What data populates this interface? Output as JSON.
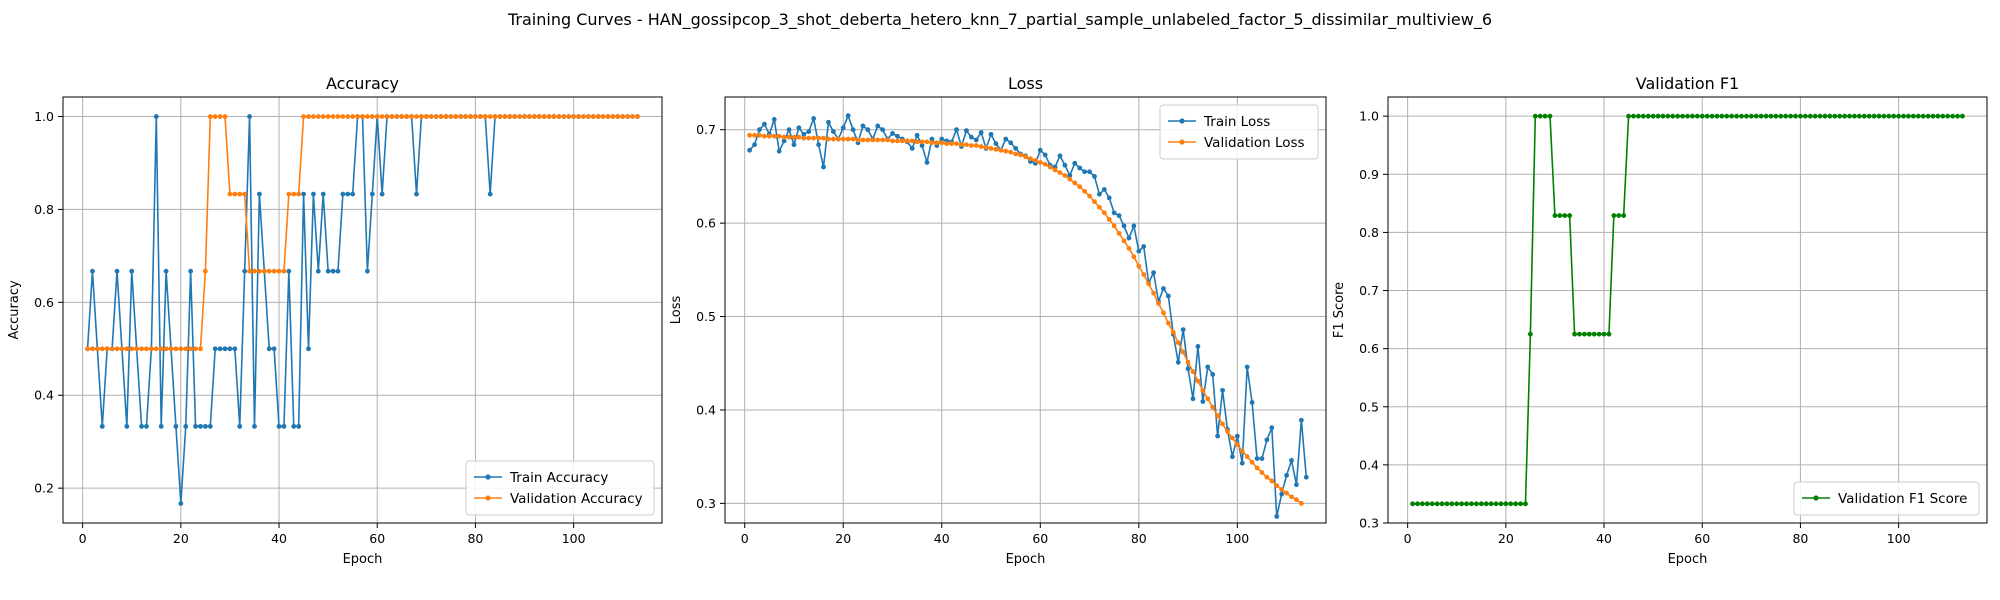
{
  "suptitle": "Training Curves - HAN_gossipcop_3_shot_deberta_hetero_knn_7_partial_sample_unlabeled_factor_5_dissimilar_multiview_6",
  "colors": {
    "train": "#1f77b4",
    "val": "#ff7f0e",
    "f1": "#008000",
    "grid": "#b0b0b0"
  },
  "chart_data": [
    {
      "type": "line",
      "title": "Accuracy",
      "xlabel": "Epoch",
      "ylabel": "Accuracy",
      "xlim": [
        -4,
        118
      ],
      "ylim": [
        0.125,
        1.042
      ],
      "xticks": [
        0,
        20,
        40,
        60,
        80,
        100
      ],
      "yticks": [
        0.2,
        0.4,
        0.6,
        0.8,
        1.0
      ],
      "ytick_labels": [
        "0.2",
        "0.4",
        "0.6",
        "0.8",
        "1.0"
      ],
      "grid": true,
      "legend_position": "lower-right",
      "x_start": 1,
      "series": [
        {
          "name": "Train Accuracy",
          "color": "#1f77b4",
          "values": [
            0.5,
            0.667,
            0.5,
            0.333,
            0.5,
            0.5,
            0.667,
            0.5,
            0.333,
            0.667,
            0.5,
            0.333,
            0.333,
            0.5,
            1.0,
            0.333,
            0.667,
            0.5,
            0.333,
            0.167,
            0.333,
            0.667,
            0.333,
            0.333,
            0.333,
            0.333,
            0.5,
            0.5,
            0.5,
            0.5,
            0.5,
            0.333,
            0.667,
            1.0,
            0.333,
            0.833,
            0.667,
            0.5,
            0.5,
            0.333,
            0.333,
            0.667,
            0.333,
            0.333,
            0.833,
            0.5,
            0.833,
            0.667,
            0.833,
            0.667,
            0.667,
            0.667,
            0.833,
            0.833,
            0.833,
            1.0,
            1.0,
            0.667,
            0.833,
            1.0,
            0.833,
            1.0,
            1.0,
            1.0,
            1.0,
            1.0,
            1.0,
            0.833,
            1.0,
            1.0,
            1.0,
            1.0,
            1.0,
            1.0,
            1.0,
            1.0,
            1.0,
            1.0,
            1.0,
            1.0,
            1.0,
            1.0,
            0.833,
            1.0,
            1.0,
            1.0,
            1.0,
            1.0,
            1.0,
            1.0,
            1.0,
            1.0,
            1.0,
            1.0,
            1.0,
            1.0,
            1.0,
            1.0,
            1.0,
            1.0,
            1.0,
            1.0,
            1.0,
            1.0,
            1.0,
            1.0,
            1.0,
            1.0,
            1.0,
            1.0,
            1.0,
            1.0,
            1.0
          ]
        },
        {
          "name": "Validation Accuracy",
          "color": "#ff7f0e",
          "values": [
            0.5,
            0.5,
            0.5,
            0.5,
            0.5,
            0.5,
            0.5,
            0.5,
            0.5,
            0.5,
            0.5,
            0.5,
            0.5,
            0.5,
            0.5,
            0.5,
            0.5,
            0.5,
            0.5,
            0.5,
            0.5,
            0.5,
            0.5,
            0.5,
            0.667,
            1.0,
            1.0,
            1.0,
            1.0,
            0.833,
            0.833,
            0.833,
            0.833,
            0.667,
            0.667,
            0.667,
            0.667,
            0.667,
            0.667,
            0.667,
            0.667,
            0.833,
            0.833,
            0.833,
            1.0,
            1.0,
            1.0,
            1.0,
            1.0,
            1.0,
            1.0,
            1.0,
            1.0,
            1.0,
            1.0,
            1.0,
            1.0,
            1.0,
            1.0,
            1.0,
            1.0,
            1.0,
            1.0,
            1.0,
            1.0,
            1.0,
            1.0,
            1.0,
            1.0,
            1.0,
            1.0,
            1.0,
            1.0,
            1.0,
            1.0,
            1.0,
            1.0,
            1.0,
            1.0,
            1.0,
            1.0,
            1.0,
            1.0,
            1.0,
            1.0,
            1.0,
            1.0,
            1.0,
            1.0,
            1.0,
            1.0,
            1.0,
            1.0,
            1.0,
            1.0,
            1.0,
            1.0,
            1.0,
            1.0,
            1.0,
            1.0,
            1.0,
            1.0,
            1.0,
            1.0,
            1.0,
            1.0,
            1.0,
            1.0,
            1.0,
            1.0,
            1.0,
            1.0
          ]
        }
      ]
    },
    {
      "type": "line",
      "title": "Loss",
      "xlabel": "Epoch",
      "ylabel": "Loss",
      "xlim": [
        -4,
        118
      ],
      "ylim": [
        0.279,
        0.735
      ],
      "xticks": [
        0,
        20,
        40,
        60,
        80,
        100
      ],
      "yticks": [
        0.3,
        0.4,
        0.5,
        0.6,
        0.7
      ],
      "ytick_labels": [
        "0.3",
        "0.4",
        "0.5",
        "0.6",
        "0.7"
      ],
      "grid": true,
      "legend_position": "upper-right",
      "x_start": 1,
      "series": [
        {
          "name": "Train Loss",
          "color": "#1f77b4",
          "values": [
            0.678,
            0.684,
            0.7,
            0.706,
            0.695,
            0.711,
            0.677,
            0.688,
            0.7,
            0.684,
            0.702,
            0.695,
            0.698,
            0.712,
            0.684,
            0.66,
            0.708,
            0.698,
            0.69,
            0.702,
            0.715,
            0.7,
            0.686,
            0.704,
            0.7,
            0.69,
            0.704,
            0.7,
            0.69,
            0.696,
            0.693,
            0.69,
            0.687,
            0.68,
            0.694,
            0.683,
            0.665,
            0.69,
            0.683,
            0.69,
            0.688,
            0.687,
            0.7,
            0.682,
            0.699,
            0.692,
            0.689,
            0.697,
            0.68,
            0.695,
            0.685,
            0.678,
            0.69,
            0.686,
            0.68,
            0.674,
            0.672,
            0.666,
            0.664,
            0.678,
            0.673,
            0.662,
            0.66,
            0.672,
            0.662,
            0.651,
            0.664,
            0.659,
            0.655,
            0.655,
            0.65,
            0.631,
            0.636,
            0.627,
            0.611,
            0.608,
            0.597,
            0.584,
            0.597,
            0.57,
            0.575,
            0.536,
            0.547,
            0.516,
            0.53,
            0.522,
            0.481,
            0.451,
            0.486,
            0.444,
            0.412,
            0.468,
            0.409,
            0.446,
            0.438,
            0.372,
            0.421,
            0.379,
            0.35,
            0.372,
            0.343,
            0.446,
            0.408,
            0.348,
            0.348,
            0.368,
            0.381,
            0.286,
            0.31,
            0.33,
            0.346,
            0.32,
            0.389,
            0.328
          ]
        },
        {
          "name": "Validation Loss",
          "color": "#ff7f0e",
          "values": [
            0.694,
            0.694,
            0.694,
            0.693,
            0.693,
            0.693,
            0.693,
            0.692,
            0.692,
            0.692,
            0.692,
            0.691,
            0.691,
            0.691,
            0.691,
            0.691,
            0.69,
            0.69,
            0.69,
            0.69,
            0.69,
            0.69,
            0.689,
            0.689,
            0.689,
            0.689,
            0.689,
            0.689,
            0.689,
            0.688,
            0.688,
            0.688,
            0.688,
            0.688,
            0.687,
            0.687,
            0.687,
            0.686,
            0.686,
            0.686,
            0.685,
            0.685,
            0.685,
            0.684,
            0.684,
            0.683,
            0.683,
            0.682,
            0.681,
            0.68,
            0.679,
            0.678,
            0.677,
            0.676,
            0.674,
            0.673,
            0.671,
            0.669,
            0.667,
            0.665,
            0.663,
            0.66,
            0.657,
            0.654,
            0.651,
            0.647,
            0.643,
            0.639,
            0.634,
            0.629,
            0.623,
            0.617,
            0.611,
            0.604,
            0.597,
            0.589,
            0.581,
            0.573,
            0.564,
            0.554,
            0.545,
            0.535,
            0.525,
            0.514,
            0.504,
            0.493,
            0.483,
            0.472,
            0.462,
            0.451,
            0.441,
            0.431,
            0.421,
            0.412,
            0.403,
            0.394,
            0.385,
            0.377,
            0.37,
            0.363,
            0.356,
            0.35,
            0.344,
            0.338,
            0.333,
            0.328,
            0.324,
            0.319,
            0.315,
            0.311,
            0.307,
            0.304,
            0.3
          ]
        }
      ]
    },
    {
      "type": "line",
      "title": "Validation F1",
      "xlabel": "Epoch",
      "ylabel": "F1 Score",
      "xlim": [
        -4,
        118
      ],
      "ylim": [
        0.3,
        1.033
      ],
      "xticks": [
        0,
        20,
        40,
        60,
        80,
        100
      ],
      "yticks": [
        0.3,
        0.4,
        0.5,
        0.6,
        0.7,
        0.8,
        0.9,
        1.0
      ],
      "ytick_labels": [
        "0.3",
        "0.4",
        "0.5",
        "0.6",
        "0.7",
        "0.8",
        "0.9",
        "1.0"
      ],
      "grid": true,
      "legend_position": "lower-right",
      "x_start": 1,
      "series": [
        {
          "name": "Validation F1 Score",
          "color": "#008000",
          "values": [
            0.333,
            0.333,
            0.333,
            0.333,
            0.333,
            0.333,
            0.333,
            0.333,
            0.333,
            0.333,
            0.333,
            0.333,
            0.333,
            0.333,
            0.333,
            0.333,
            0.333,
            0.333,
            0.333,
            0.333,
            0.333,
            0.333,
            0.333,
            0.333,
            0.625,
            1.0,
            1.0,
            1.0,
            1.0,
            0.829,
            0.829,
            0.829,
            0.829,
            0.625,
            0.625,
            0.625,
            0.625,
            0.625,
            0.625,
            0.625,
            0.625,
            0.829,
            0.829,
            0.829,
            1.0,
            1.0,
            1.0,
            1.0,
            1.0,
            1.0,
            1.0,
            1.0,
            1.0,
            1.0,
            1.0,
            1.0,
            1.0,
            1.0,
            1.0,
            1.0,
            1.0,
            1.0,
            1.0,
            1.0,
            1.0,
            1.0,
            1.0,
            1.0,
            1.0,
            1.0,
            1.0,
            1.0,
            1.0,
            1.0,
            1.0,
            1.0,
            1.0,
            1.0,
            1.0,
            1.0,
            1.0,
            1.0,
            1.0,
            1.0,
            1.0,
            1.0,
            1.0,
            1.0,
            1.0,
            1.0,
            1.0,
            1.0,
            1.0,
            1.0,
            1.0,
            1.0,
            1.0,
            1.0,
            1.0,
            1.0,
            1.0,
            1.0,
            1.0,
            1.0,
            1.0,
            1.0,
            1.0,
            1.0,
            1.0,
            1.0,
            1.0,
            1.0,
            1.0
          ]
        }
      ]
    }
  ]
}
